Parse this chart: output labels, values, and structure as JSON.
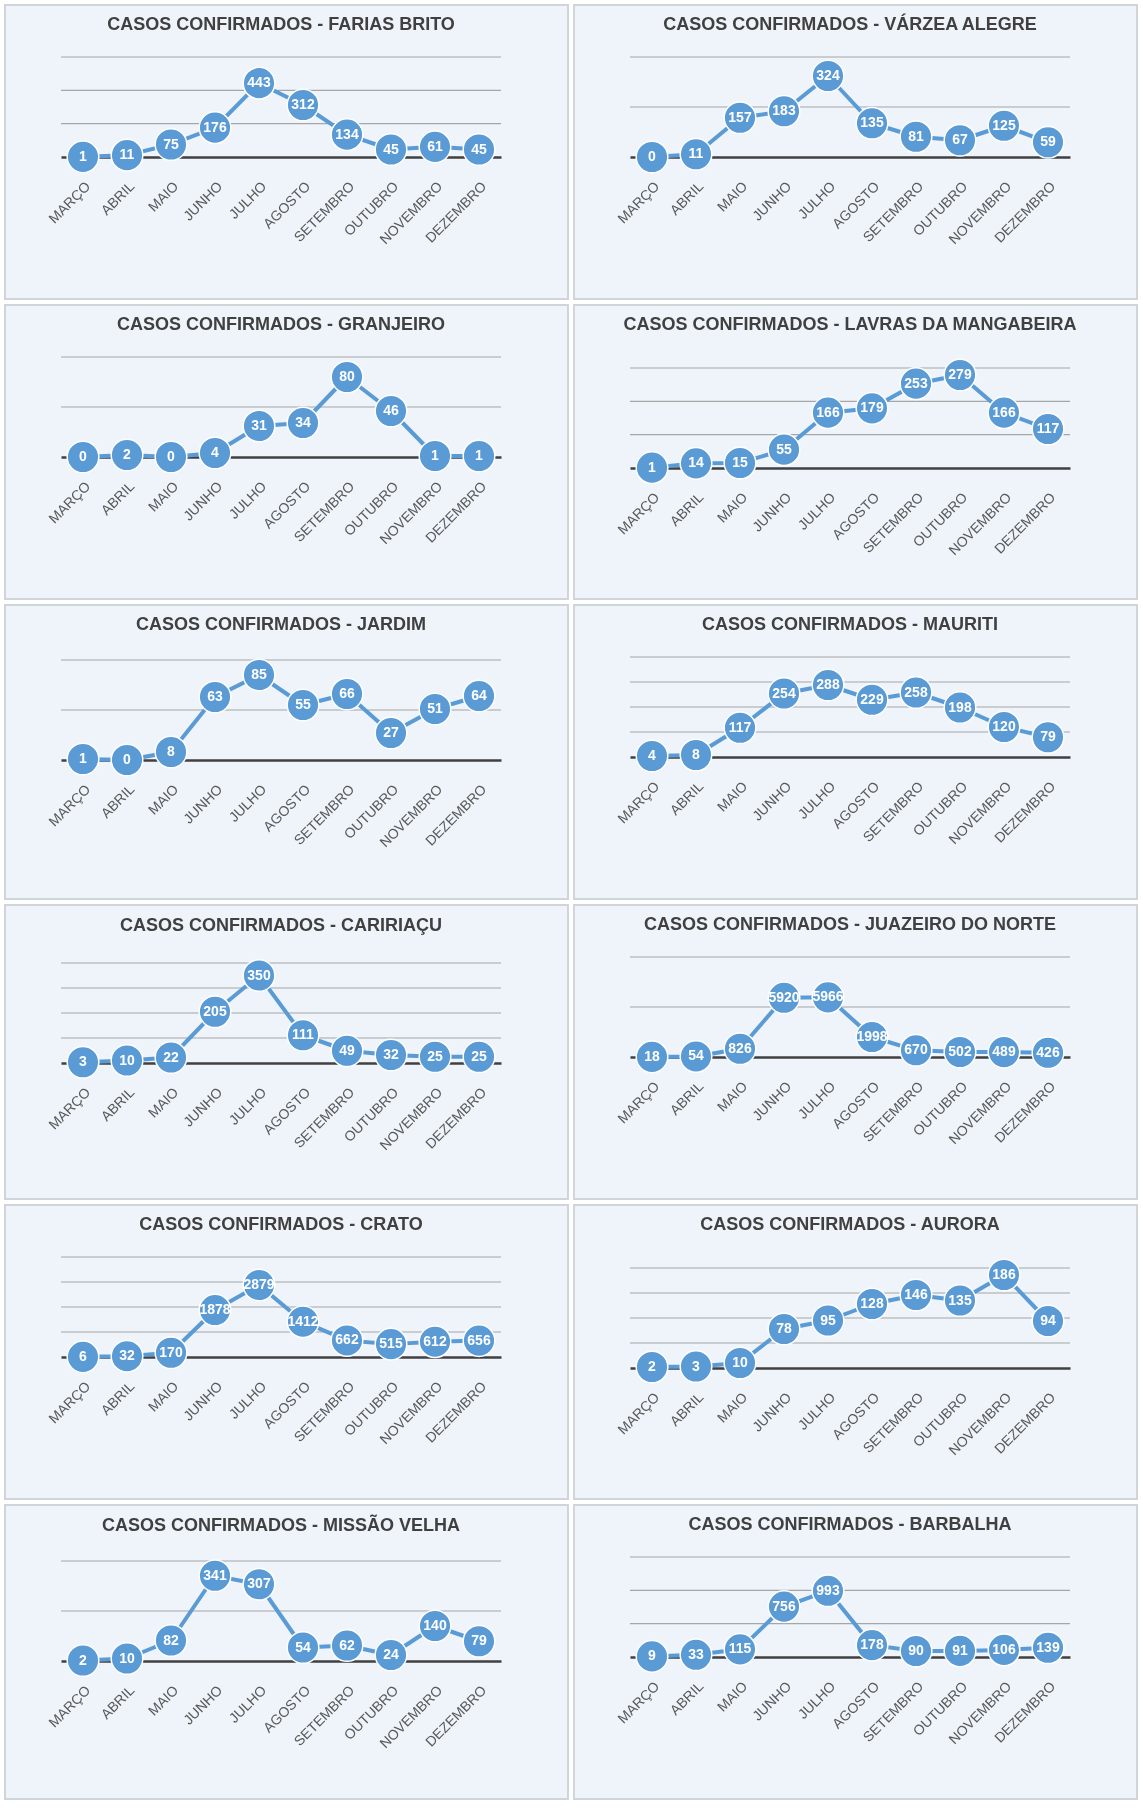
{
  "chart_data": [
    {
      "type": "line",
      "title": "CASOS CONFIRMADOS - FARIAS BRITO",
      "categories": [
        "MARÇO",
        "ABRIL",
        "MAIO",
        "JUNHO",
        "JULHO",
        "AGOSTO",
        "SETEMBRO",
        "OUTUBRO",
        "NOVEMBRO",
        "DEZEMBRO"
      ],
      "series": [
        {
          "color": "#5b9bd5",
          "values": [
            1,
            11,
            75,
            176,
            443,
            312,
            134,
            45,
            61,
            45
          ]
        }
      ],
      "ylim": [
        0,
        600
      ],
      "yticks": [
        {
          "value": 200,
          "label": null
        },
        {
          "value": 400,
          "label": null
        },
        {
          "value": 600,
          "label": null
        }
      ],
      "grid": "y",
      "tick_labels": "x",
      "data_labels": true,
      "marker": "circle"
    },
    {
      "type": "line",
      "title": "CASOS CONFIRMADOS - VÁRZEA ALEGRE",
      "categories": [
        "MARÇO",
        "ABRIL",
        "MAIO",
        "JUNHO",
        "JULHO",
        "AGOSTO",
        "SETEMBRO",
        "OUTUBRO",
        "NOVEMBRO",
        "DEZEMBRO"
      ],
      "series": [
        {
          "color": "#5b9bd5",
          "values": [
            0,
            11,
            157,
            183,
            324,
            135,
            81,
            67,
            125,
            59
          ]
        }
      ],
      "ylim": [
        0,
        400
      ],
      "yticks": [
        {
          "value": 200,
          "label": null
        },
        {
          "value": 400,
          "label": null
        }
      ],
      "grid": "y",
      "tick_labels": "x",
      "data_labels": true,
      "marker": "circle"
    },
    {
      "type": "line",
      "title": "CASOS CONFIRMADOS - GRANJEIRO",
      "categories": [
        "MARÇO",
        "ABRIL",
        "MAIO",
        "JUNHO",
        "JULHO",
        "AGOSTO",
        "SETEMBRO",
        "OUTUBRO",
        "NOVEMBRO",
        "DEZEMBRO"
      ],
      "series": [
        {
          "color": "#5b9bd5",
          "values": [
            0,
            2,
            0,
            4,
            31,
            34,
            80,
            46,
            1,
            1
          ]
        }
      ],
      "ylim": [
        0,
        100
      ],
      "yticks": [
        {
          "value": 50,
          "label": null
        },
        {
          "value": 100,
          "label": null
        }
      ],
      "grid": "y",
      "tick_labels": "x",
      "data_labels": true,
      "marker": "circle"
    },
    {
      "type": "line",
      "title": "CASOS CONFIRMADOS - LAVRAS DA MANGABEIRA",
      "categories": [
        "MARÇO",
        "ABRIL",
        "MAIO",
        "JUNHO",
        "JULHO",
        "AGOSTO",
        "SETEMBRO",
        "OUTUBRO",
        "NOVEMBRO",
        "DEZEMBRO"
      ],
      "series": [
        {
          "color": "#5b9bd5",
          "values": [
            1,
            14,
            15,
            55,
            166,
            179,
            253,
            279,
            166,
            117
          ]
        }
      ],
      "ylim": [
        0,
        300
      ],
      "yticks": [
        {
          "value": 100,
          "label": null
        },
        {
          "value": 200,
          "label": null
        },
        {
          "value": 300,
          "label": null
        }
      ],
      "grid": "y",
      "tick_labels": "x",
      "data_labels": true,
      "marker": "circle"
    },
    {
      "type": "line",
      "title": "CASOS CONFIRMADOS - JARDIM",
      "categories": [
        "MARÇO",
        "ABRIL",
        "MAIO",
        "JUNHO",
        "JULHO",
        "AGOSTO",
        "SETEMBRO",
        "OUTUBRO",
        "NOVEMBRO",
        "DEZEMBRO"
      ],
      "series": [
        {
          "color": "#5b9bd5",
          "values": [
            1,
            0,
            8,
            63,
            85,
            55,
            66,
            27,
            51,
            64
          ]
        }
      ],
      "ylim": [
        0,
        100
      ],
      "yticks": [
        {
          "value": 50,
          "label": null
        },
        {
          "value": 100,
          "label": null
        }
      ],
      "grid": "y",
      "tick_labels": "x",
      "data_labels": true,
      "marker": "circle"
    },
    {
      "type": "line",
      "title": "CASOS CONFIRMADOS - MAURITI",
      "categories": [
        "MARÇO",
        "ABRIL",
        "MAIO",
        "JUNHO",
        "JULHO",
        "AGOSTO",
        "SETEMBRO",
        "OUTUBRO",
        "NOVEMBRO",
        "DEZEMBRO"
      ],
      "series": [
        {
          "color": "#5b9bd5",
          "values": [
            4,
            8,
            117,
            254,
            288,
            229,
            258,
            198,
            120,
            79
          ]
        }
      ],
      "ylim": [
        0,
        400
      ],
      "yticks": [
        {
          "value": 100,
          "label": null
        },
        {
          "value": 200,
          "label": null
        },
        {
          "value": 300,
          "label": null
        },
        {
          "value": 400,
          "label": null
        }
      ],
      "grid": "y",
      "tick_labels": "x",
      "data_labels": true,
      "marker": "circle"
    },
    {
      "type": "line",
      "title": "CASOS CONFIRMADOS - CARIRIAÇU",
      "categories": [
        "MARÇO",
        "ABRIL",
        "MAIO",
        "JUNHO",
        "JULHO",
        "AGOSTO",
        "SETEMBRO",
        "OUTUBRO",
        "NOVEMBRO",
        "DEZEMBRO"
      ],
      "series": [
        {
          "color": "#5b9bd5",
          "values": [
            3,
            10,
            22,
            205,
            350,
            111,
            49,
            32,
            25,
            25
          ]
        }
      ],
      "ylim": [
        0,
        400
      ],
      "yticks": [
        {
          "value": 100,
          "label": null
        },
        {
          "value": 200,
          "label": null
        },
        {
          "value": 300,
          "label": null
        },
        {
          "value": 400,
          "label": null
        }
      ],
      "grid": "y",
      "tick_labels": "x",
      "data_labels": true,
      "marker": "circle"
    },
    {
      "type": "line",
      "title": "CASOS CONFIRMADOS - JUAZEIRO DO NORTE",
      "categories": [
        "MARÇO",
        "ABRIL",
        "MAIO",
        "JUNHO",
        "JULHO",
        "AGOSTO",
        "SETEMBRO",
        "OUTUBRO",
        "NOVEMBRO",
        "DEZEMBRO"
      ],
      "series": [
        {
          "color": "#5b9bd5",
          "values": [
            18,
            54,
            826,
            5920,
            5966,
            1998,
            670,
            502,
            489,
            426
          ]
        }
      ],
      "ylim": [
        0,
        10000
      ],
      "yticks": [
        {
          "value": 5000,
          "label": null
        },
        {
          "value": 10000,
          "label": null
        }
      ],
      "grid": "y",
      "tick_labels": "x",
      "data_labels": true,
      "marker": "circle"
    },
    {
      "type": "line",
      "title": "CASOS CONFIRMADOS - CRATO",
      "categories": [
        "MARÇO",
        "ABRIL",
        "MAIO",
        "JUNHO",
        "JULHO",
        "AGOSTO",
        "SETEMBRO",
        "OUTUBRO",
        "NOVEMBRO",
        "DEZEMBRO"
      ],
      "series": [
        {
          "color": "#5b9bd5",
          "values": [
            6,
            32,
            170,
            1878,
            2879,
            1412,
            662,
            515,
            612,
            656
          ]
        }
      ],
      "ylim": [
        0,
        4000
      ],
      "yticks": [
        {
          "value": 1000,
          "label": null
        },
        {
          "value": 2000,
          "label": null
        },
        {
          "value": 3000,
          "label": null
        },
        {
          "value": 4000,
          "label": null
        }
      ],
      "grid": "y",
      "tick_labels": "x",
      "data_labels": true,
      "marker": "circle"
    },
    {
      "type": "line",
      "title": "CASOS CONFIRMADOS - AURORA",
      "categories": [
        "MARÇO",
        "ABRIL",
        "MAIO",
        "JUNHO",
        "JULHO",
        "AGOSTO",
        "SETEMBRO",
        "OUTUBRO",
        "NOVEMBRO",
        "DEZEMBRO"
      ],
      "series": [
        {
          "color": "#5b9bd5",
          "values": [
            2,
            3,
            10,
            78,
            95,
            128,
            146,
            135,
            186,
            94
          ]
        }
      ],
      "ylim": [
        0,
        200
      ],
      "yticks": [
        {
          "value": 50,
          "label": null
        },
        {
          "value": 100,
          "label": null
        },
        {
          "value": 150,
          "label": null
        },
        {
          "value": 200,
          "label": null
        }
      ],
      "grid": "y",
      "tick_labels": "x",
      "data_labels": true,
      "marker": "circle"
    },
    {
      "type": "line",
      "title": "CASOS CONFIRMADOS - MISSÃO VELHA",
      "categories": [
        "MARÇO",
        "ABRIL",
        "MAIO",
        "JUNHO",
        "JULHO",
        "AGOSTO",
        "SETEMBRO",
        "OUTUBRO",
        "NOVEMBRO",
        "DEZEMBRO"
      ],
      "series": [
        {
          "color": "#5b9bd5",
          "values": [
            2,
            10,
            82,
            341,
            307,
            54,
            62,
            24,
            140,
            79
          ]
        }
      ],
      "ylim": [
        0,
        400
      ],
      "yticks": [
        {
          "value": 200,
          "label": null
        },
        {
          "value": 400,
          "label": null
        }
      ],
      "grid": "y",
      "tick_labels": "x",
      "data_labels": true,
      "marker": "circle"
    },
    {
      "type": "line",
      "title": "CASOS CONFIRMADOS - BARBALHA",
      "categories": [
        "MARÇO",
        "ABRIL",
        "MAIO",
        "JUNHO",
        "JULHO",
        "AGOSTO",
        "SETEMBRO",
        "OUTUBRO",
        "NOVEMBRO",
        "DEZEMBRO"
      ],
      "series": [
        {
          "color": "#5b9bd5",
          "values": [
            9,
            33,
            115,
            756,
            993,
            178,
            90,
            91,
            106,
            139
          ]
        }
      ],
      "ylim": [
        0,
        1500
      ],
      "yticks": [
        {
          "value": 500,
          "label": null
        },
        {
          "value": 1000,
          "label": null
        },
        {
          "value": 1500,
          "label": null
        }
      ],
      "grid": "y",
      "tick_labels": "x",
      "data_labels": true,
      "marker": "circle"
    }
  ]
}
